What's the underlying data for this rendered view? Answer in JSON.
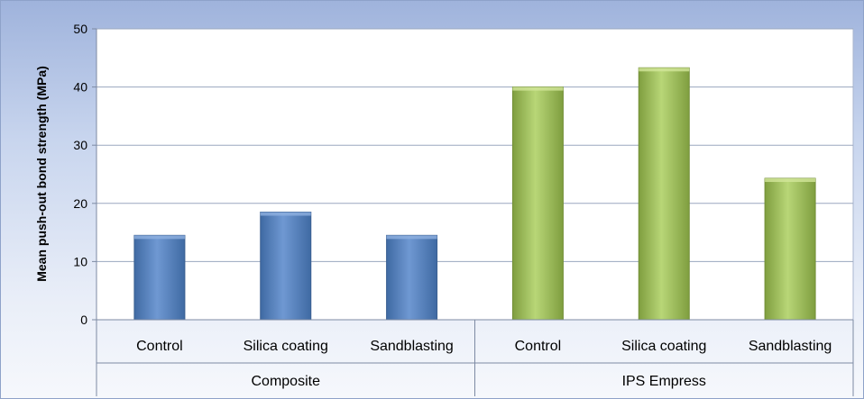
{
  "chart_data": {
    "type": "bar",
    "ylabel": "Mean push-out bond strength (MPa)",
    "ylim": [
      0,
      50
    ],
    "yticks": [
      0,
      10,
      20,
      30,
      40,
      50
    ],
    "grid": true,
    "groups": [
      {
        "name": "Composite",
        "color": "#4f81bd",
        "categories": [
          "Control",
          "Silica coating",
          "Sandblasting"
        ],
        "values": [
          14.5,
          18.5,
          14.5
        ]
      },
      {
        "name": "IPS Empress",
        "color": "#9bbb59",
        "categories": [
          "Control",
          "Silica coating",
          "Sandblasting"
        ],
        "values": [
          40,
          43.3,
          24.3
        ]
      }
    ]
  }
}
